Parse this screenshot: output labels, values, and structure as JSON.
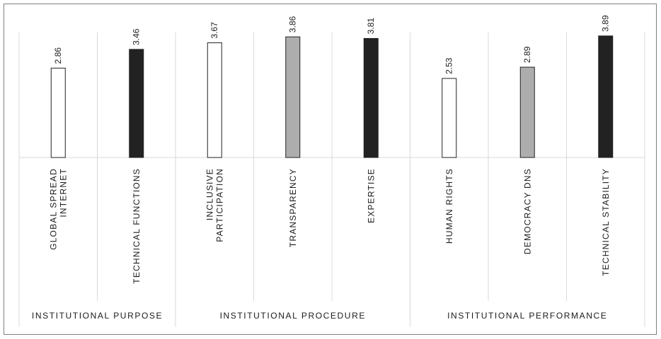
{
  "chart_data": {
    "type": "bar",
    "categories": [
      {
        "lines": [
          "GLOBAL SPREAD",
          "INTERNET"
        ]
      },
      {
        "lines": [
          "TECHNICAL FUNCTIONS"
        ]
      },
      {
        "lines": [
          "INCLUSIVE",
          "PARTICIPATION"
        ]
      },
      {
        "lines": [
          "TRANSPARENCY"
        ]
      },
      {
        "lines": [
          "EXPERTISE"
        ]
      },
      {
        "lines": [
          "HUMAN RIGHTS"
        ]
      },
      {
        "lines": [
          "DEMOCRACY DNS"
        ]
      },
      {
        "lines": [
          "TECHNICAL STABILITY"
        ]
      }
    ],
    "values": [
      2.86,
      3.46,
      3.67,
      3.86,
      3.81,
      2.53,
      2.89,
      3.89
    ],
    "value_labels": [
      "2.86",
      "3.46",
      "3.67",
      "3.86",
      "3.81",
      "2.53",
      "2.89",
      "3.89"
    ],
    "fills": [
      "#ffffff",
      "#222222",
      "#ffffff",
      "#adadad",
      "#222222",
      "#ffffff",
      "#adadad",
      "#222222"
    ],
    "groups": [
      {
        "label": "INSTITUTIONAL PURPOSE",
        "count": 2
      },
      {
        "label": "INSTITUTIONAL PROCEDURE",
        "count": 3
      },
      {
        "label": "INSTITUTIONAL PERFORMANCE",
        "count": 3
      }
    ],
    "ylim": [
      0,
      4
    ],
    "grid": false,
    "legend": "none"
  }
}
